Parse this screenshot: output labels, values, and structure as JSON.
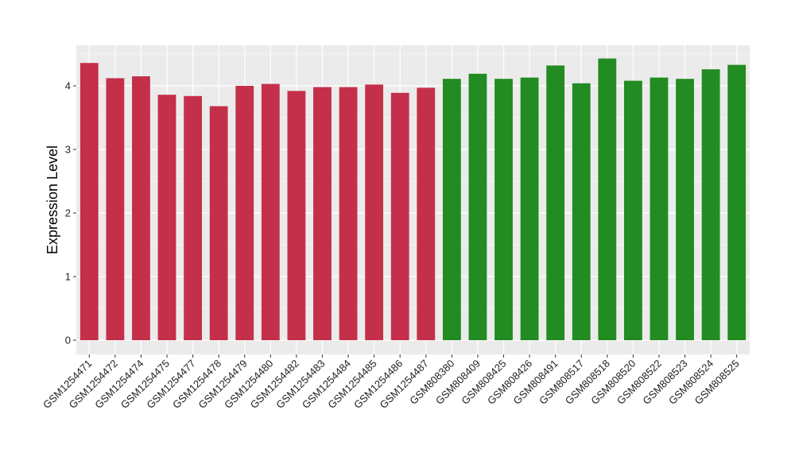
{
  "chart_data": {
    "type": "bar",
    "title": "",
    "xlabel": "",
    "ylabel": "Expression Level",
    "ylim": [
      0,
      4.5
    ],
    "yticks": [
      0,
      1,
      2,
      3,
      4
    ],
    "grid": true,
    "categories": [
      "GSM1254471",
      "GSM1254472",
      "GSM1254474",
      "GSM1254475",
      "GSM1254477",
      "GSM1254478",
      "GSM1254479",
      "GSM1254480",
      "GSM1254482",
      "GSM1254483",
      "GSM1254484",
      "GSM1254485",
      "GSM1254486",
      "GSM1254487",
      "GSM808380",
      "GSM808409",
      "GSM808425",
      "GSM808426",
      "GSM808491",
      "GSM808517",
      "GSM808518",
      "GSM808520",
      "GSM808522",
      "GSM808523",
      "GSM808524",
      "GSM808525"
    ],
    "values": [
      4.36,
      4.12,
      4.15,
      3.86,
      3.84,
      3.68,
      4.0,
      4.03,
      3.92,
      3.98,
      3.98,
      4.02,
      3.89,
      3.97,
      4.11,
      4.19,
      4.11,
      4.13,
      4.32,
      4.04,
      4.43,
      4.08,
      4.13,
      4.11,
      4.26,
      4.33
    ],
    "colors": [
      "#C43049",
      "#C43049",
      "#C43049",
      "#C43049",
      "#C43049",
      "#C43049",
      "#C43049",
      "#C43049",
      "#C43049",
      "#C43049",
      "#C43049",
      "#C43049",
      "#C43049",
      "#C43049",
      "#228B22",
      "#228B22",
      "#228B22",
      "#228B22",
      "#228B22",
      "#228B22",
      "#228B22",
      "#228B22",
      "#228B22",
      "#228B22",
      "#228B22",
      "#228B22"
    ],
    "panel_background": "#EBEBEB",
    "grid_color": "#FFFFFF"
  }
}
